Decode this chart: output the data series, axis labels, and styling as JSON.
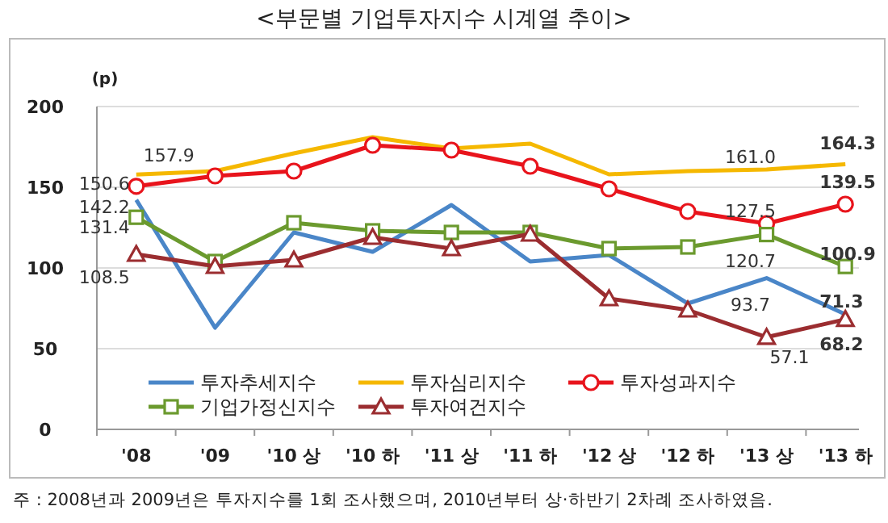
{
  "chart_data": {
    "type": "line",
    "title": "<부문별 기업투자지수 시계열 추이>",
    "ylabel": "(p)",
    "categories": [
      "'08",
      "'09",
      "'10 상",
      "'10 하",
      "'11 상",
      "'11 하",
      "'12 상",
      "'12 하",
      "'13 상",
      "'13 하"
    ],
    "series": [
      {
        "name": "투자추세지수",
        "color": "#4a86c8",
        "marker": "none",
        "values": [
          142.2,
          63,
          122,
          110,
          139,
          104,
          108,
          78,
          93.7,
          71.3
        ],
        "value_labels": [
          "142.2",
          null,
          null,
          null,
          null,
          null,
          null,
          null,
          "93.7",
          "71.3"
        ]
      },
      {
        "name": "투자심리지수",
        "color": "#f5b800",
        "marker": "none",
        "values": [
          157.9,
          160,
          171,
          181,
          174,
          177,
          158,
          160,
          161.0,
          164.3
        ],
        "value_labels": [
          "157.9",
          null,
          null,
          null,
          null,
          null,
          null,
          null,
          "161.0",
          "164.3"
        ]
      },
      {
        "name": "투자성과지수",
        "color": "#e8141c",
        "marker": "circle",
        "values": [
          150.6,
          157,
          160,
          176,
          173,
          163,
          149,
          135,
          127.5,
          139.5
        ],
        "value_labels": [
          "150.6",
          null,
          null,
          null,
          null,
          null,
          null,
          null,
          "127.5",
          "139.5"
        ]
      },
      {
        "name": "기업가정신지수",
        "color": "#6b9a2e",
        "marker": "square",
        "values": [
          131.4,
          104,
          128,
          123,
          122,
          122,
          112,
          113,
          120.7,
          100.9
        ],
        "value_labels": [
          "131.4",
          null,
          null,
          null,
          null,
          null,
          null,
          null,
          "120.7",
          "100.9"
        ]
      },
      {
        "name": "투자여건지수",
        "color": "#9b2d30",
        "marker": "triangle",
        "values": [
          108.5,
          101,
          105,
          119,
          112,
          121,
          81,
          74,
          57.1,
          68.2
        ],
        "value_labels": [
          "108.5",
          null,
          null,
          null,
          null,
          null,
          null,
          null,
          "57.1",
          "68.2"
        ]
      }
    ],
    "ylim": [
      0,
      200
    ],
    "yticks": [
      0,
      50,
      100,
      150,
      200
    ],
    "grid": "y",
    "legend": "bottom",
    "annotations": [
      "주 : 2008년과 2009년은 투자지수를 1회 조사했으며, 2010년부터 상·하반기 2차례 조사하였음."
    ]
  }
}
